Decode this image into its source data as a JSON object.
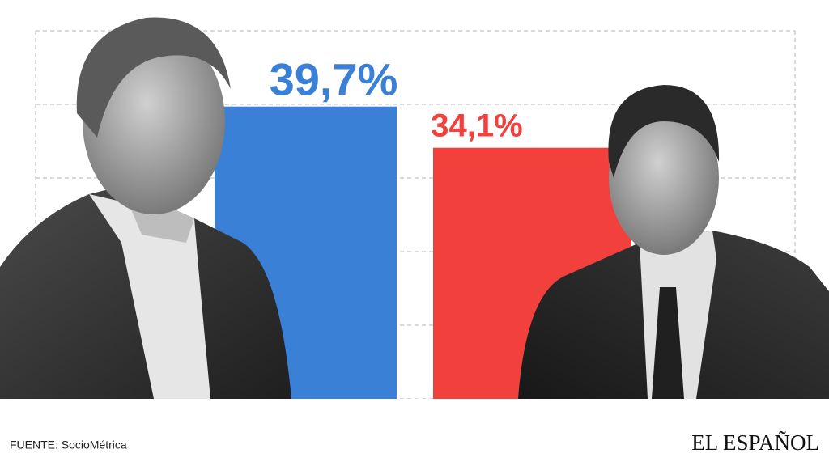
{
  "chart_data": {
    "type": "bar",
    "categories": [
      null,
      null
    ],
    "values": [
      39.7,
      34.1
    ],
    "value_labels": [
      "39,7%",
      "34,1%"
    ],
    "colors": [
      "#3a80d6",
      "#f2403c"
    ],
    "ylim": [
      0,
      50
    ],
    "yticks": [
      0,
      10,
      20,
      30,
      40,
      50
    ],
    "grid": true,
    "source": "FUENTE: SocioMétrica"
  },
  "logo": "EL ESPAÑOL"
}
